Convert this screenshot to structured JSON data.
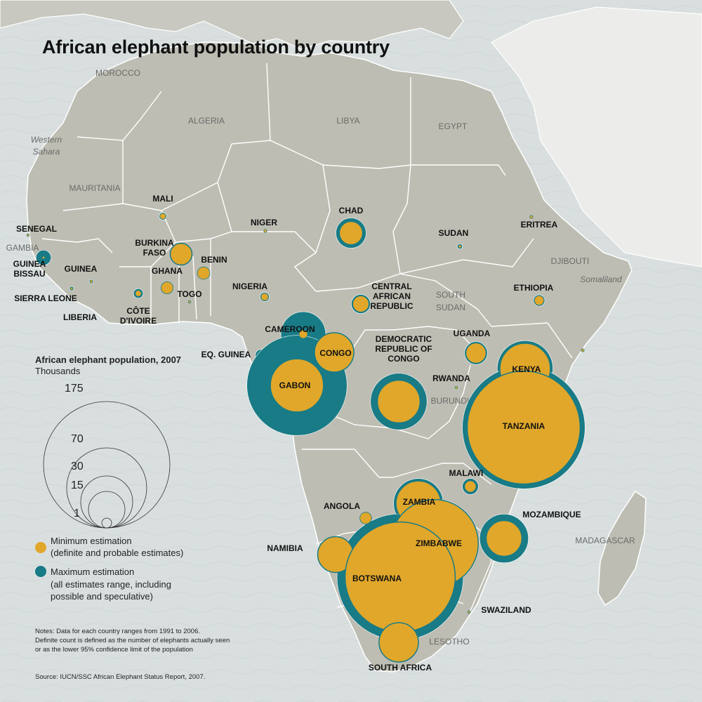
{
  "title": "African elephant population by country",
  "colors": {
    "ocean": "#d9dfdf",
    "land": "#bebdb3",
    "border": "#ffffff",
    "minimum": "#e0a72a",
    "maximum": "#187b86",
    "text": "#111111",
    "muted_label": "#6a6a6a"
  },
  "legend": {
    "title": "African elephant population, 2007",
    "subtitle": "Thousands",
    "scale_values": [
      "175",
      "70",
      "30",
      "15",
      "1"
    ],
    "minimum_label": "Minimum estimation",
    "minimum_desc": "(definite and probable estimates)",
    "maximum_label": "Maximum estimation",
    "maximum_desc_1": "(all estimates range, including",
    "maximum_desc_2": "possible and speculative)"
  },
  "notes": {
    "line1": "Notes: Data for each country ranges from 1991 to 2006.",
    "line2": "Definite count is defined as the number of elephants actually seen",
    "line3": "or as the lower 95% confidence limit of the population",
    "source": "Source: IUCN/SSC African Elephant Status Report, 2007."
  },
  "other_labels": {
    "morocco": "MOROCCO",
    "algeria": "ALGERIA",
    "libya": "LIBYA",
    "egypt": "EGYPT",
    "western_sahara_1": "Western",
    "western_sahara_2": "Sahara",
    "mauritania": "MAURITANIA",
    "gambia": "GAMBIA",
    "south_sudan_1": "SOUTH",
    "south_sudan_2": "SUDAN",
    "djibouti": "DJIBOUTI",
    "somaliland": "Somaliland",
    "burundi": "BURUNDI",
    "madagascar": "MADAGASCAR",
    "lesotho": "LESOTHO"
  },
  "chart_data": {
    "type": "proportional-symbol map",
    "units": "Thousands",
    "countries": [
      {
        "id": "mali",
        "lines": [
          "MALI"
        ],
        "min": 0.4,
        "max": 0.6
      },
      {
        "id": "niger",
        "lines": [
          "NIGER"
        ],
        "min": 0.1,
        "max": 0.1
      },
      {
        "id": "chad",
        "lines": [
          "CHAD"
        ],
        "min": 6,
        "max": 10
      },
      {
        "id": "sudan",
        "lines": [
          "SUDAN"
        ],
        "min": 0.1,
        "max": 0.3
      },
      {
        "id": "eritrea",
        "lines": [
          "ERITREA"
        ],
        "min": 0.1,
        "max": 0.1
      },
      {
        "id": "senegal",
        "lines": [
          "SENEGAL"
        ],
        "min": 0.01,
        "max": 0.02
      },
      {
        "id": "guinea-bissau",
        "lines": [
          "GUINEA",
          "BISSAU"
        ],
        "min": 0.01,
        "max": 2.5
      },
      {
        "id": "guinea",
        "lines": [
          "GUINEA"
        ],
        "min": 0.1,
        "max": 0.2
      },
      {
        "id": "sierra-leone",
        "lines": [
          "SIERRA LEONE"
        ],
        "min": 0.01,
        "max": 0.2
      },
      {
        "id": "liberia",
        "lines": [
          "LIBERIA"
        ],
        "min": 0,
        "max": 0
      },
      {
        "id": "burkina-faso",
        "lines": [
          "BURKINA",
          "FASO"
        ],
        "min": 5.2,
        "max": 5.2
      },
      {
        "id": "ghana",
        "lines": [
          "GHANA"
        ],
        "min": 1.6,
        "max": 1.6
      },
      {
        "id": "cote-divoire",
        "lines": [
          "CÔTE",
          "D'IVOIRE"
        ],
        "min": 0.4,
        "max": 1
      },
      {
        "id": "togo",
        "lines": [
          "TOGO"
        ],
        "min": 0.05,
        "max": 0.05
      },
      {
        "id": "benin",
        "lines": [
          "BENIN"
        ],
        "min": 1.7,
        "max": 1.7
      },
      {
        "id": "nigeria",
        "lines": [
          "NIGERIA"
        ],
        "min": 0.6,
        "max": 0.9
      },
      {
        "id": "cameroon",
        "lines": [
          "CAMEROON"
        ],
        "min": 0.8,
        "max": 22
      },
      {
        "id": "central-african-republic",
        "lines": [
          "CENTRAL",
          "AFRICAN",
          "REPUBLIC"
        ],
        "min": 3,
        "max": 4
      },
      {
        "id": "ethiopia",
        "lines": [
          "ETHIOPIA"
        ],
        "min": 1,
        "max": 1.4
      },
      {
        "id": "somalia",
        "lines": [],
        "min": 0.1,
        "max": 0.1
      },
      {
        "id": "uganda",
        "lines": [
          "UGANDA"
        ],
        "min": 4.6,
        "max": 5.7
      },
      {
        "id": "eq-guinea",
        "lines": [
          "EQ. GUINEA"
        ],
        "min": 0,
        "max": 1.5
      },
      {
        "id": "congo",
        "lines": [
          "CONGO"
        ],
        "min": 17,
        "max": 17
      },
      {
        "id": "drc",
        "lines": [
          "DEMOCRATIC",
          "REPUBLIC OF",
          "CONGO"
        ],
        "min": 20,
        "max": 35
      },
      {
        "id": "gabon",
        "lines": [
          "GABON"
        ],
        "min": 31,
        "max": 110
      },
      {
        "id": "rwanda",
        "lines": [
          "RWANDA"
        ],
        "min": 0.1,
        "max": 0.2
      },
      {
        "id": "kenya",
        "lines": [
          "KENYA"
        ],
        "min": 28,
        "max": 34
      },
      {
        "id": "tanzania",
        "lines": [
          "TANZANIA"
        ],
        "min": 140,
        "max": 165
      },
      {
        "id": "malawi",
        "lines": [
          "MALAWI"
        ],
        "min": 1.4,
        "max": 2.8
      },
      {
        "id": "angola",
        "lines": [
          "ANGOLA"
        ],
        "min": 1.5,
        "max": 1.5
      },
      {
        "id": "zambia",
        "lines": [
          "ZAMBIA"
        ],
        "min": 22,
        "max": 27
      },
      {
        "id": "zimbabwe",
        "lines": [
          "ZIMBABWE"
        ],
        "min": 84,
        "max": 86
      },
      {
        "id": "mozambique",
        "lines": [
          "MOZAMBIQUE"
        ],
        "min": 14,
        "max": 26
      },
      {
        "id": "namibia",
        "lines": [
          "NAMIBIA"
        ],
        "min": 14,
        "max": 14
      },
      {
        "id": "botswana",
        "lines": [
          "BOTSWANA"
        ],
        "min": 133,
        "max": 175
      },
      {
        "id": "swaziland",
        "lines": [
          "SWAZILAND"
        ],
        "min": 0.04,
        "max": 0.04
      },
      {
        "id": "south-africa",
        "lines": [
          "SOUTH AFRICA"
        ],
        "min": 17,
        "max": 17
      }
    ]
  }
}
